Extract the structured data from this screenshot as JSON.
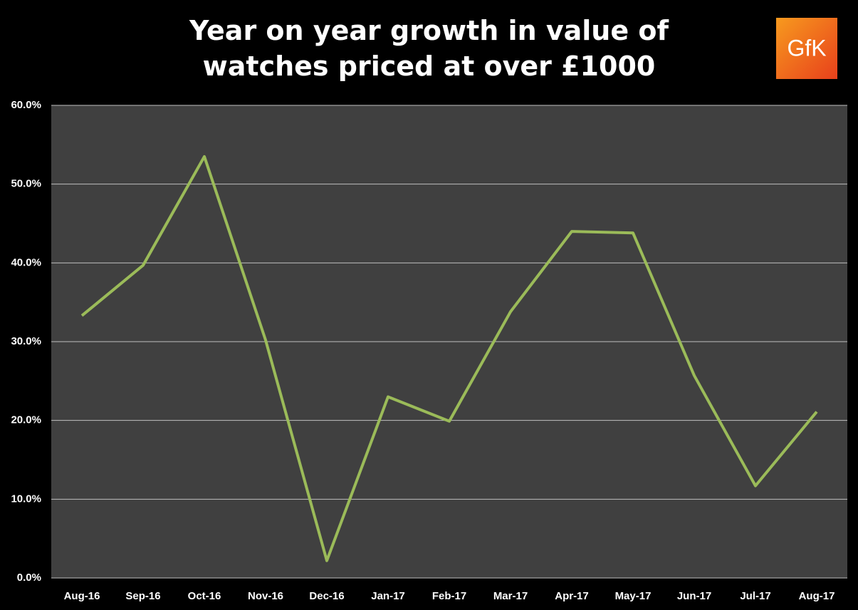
{
  "chart_data": {
    "type": "line",
    "title": "Year on year growth in value of watches priced at over £1000",
    "logo": "GfK",
    "categories": [
      "Aug-16",
      "Sep-16",
      "Oct-16",
      "Nov-16",
      "Dec-16",
      "Jan-17",
      "Feb-17",
      "Mar-17",
      "Apr-17",
      "May-17",
      "Jun-17",
      "Jul-17",
      "Aug-17"
    ],
    "values": [
      33.3,
      39.7,
      53.5,
      30.2,
      2.2,
      23.0,
      19.9,
      33.8,
      44.0,
      43.8,
      25.7,
      11.7,
      21.1
    ],
    "color": "#9bbb59",
    "ylim": [
      0,
      60
    ],
    "yticks": [
      {
        "value": 0,
        "label": "0.0%"
      },
      {
        "value": 10,
        "label": "10.0%"
      },
      {
        "value": 20,
        "label": "20.0%"
      },
      {
        "value": 30,
        "label": "30.0%"
      },
      {
        "value": 40,
        "label": "40.0%"
      },
      {
        "value": 50,
        "label": "50.0%"
      },
      {
        "value": 60,
        "label": "60.0%"
      }
    ],
    "grid": true
  }
}
